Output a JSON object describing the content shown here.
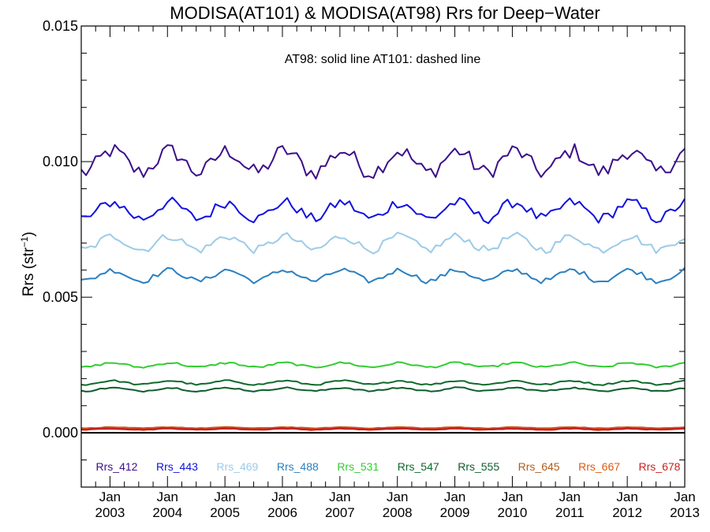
{
  "chart_data": {
    "type": "line",
    "title": "MODISA(AT101) & MODISA(AT98)  Rrs for Deep−Water",
    "annotation": "AT98: solid line   AT101: dashed line",
    "ylabel_main": "Rrs (str",
    "ylabel_sup": "−1",
    "ylabel_tail": ")",
    "xlabel": "",
    "x_start": "2002-07",
    "x_end": "2013-01",
    "ylim": [
      -0.002,
      0.015
    ],
    "y_ticks": [
      0.0,
      0.005,
      0.01,
      0.015
    ],
    "y_tick_labels": [
      "0.000",
      "0.005",
      "0.010",
      "0.015"
    ],
    "x_ticks": [
      {
        "month": "Jan",
        "year": "2003",
        "date": "2003-01"
      },
      {
        "month": "Jan",
        "year": "2004",
        "date": "2004-01"
      },
      {
        "month": "Jan",
        "year": "2005",
        "date": "2005-01"
      },
      {
        "month": "Jan",
        "year": "2006",
        "date": "2006-01"
      },
      {
        "month": "Jan",
        "year": "2007",
        "date": "2007-01"
      },
      {
        "month": "Jan",
        "year": "2008",
        "date": "2008-01"
      },
      {
        "month": "Jan",
        "year": "2009",
        "date": "2009-01"
      },
      {
        "month": "Jan",
        "year": "2010",
        "date": "2010-01"
      },
      {
        "month": "Jan",
        "year": "2011",
        "date": "2011-01"
      },
      {
        "month": "Jan",
        "year": "2012",
        "date": "2012-01"
      },
      {
        "month": "Jan",
        "year": "2013",
        "date": "2013-01"
      }
    ],
    "legend_placement": "bottom",
    "zero_line": true,
    "series": [
      {
        "name": "Rrs_412",
        "color": "#3b0f8a",
        "mean": 0.01,
        "amp": 0.0004,
        "noise": 0.0003
      },
      {
        "name": "Rrs_443",
        "color": "#1010e0",
        "mean": 0.0082,
        "amp": 0.0003,
        "noise": 0.0002
      },
      {
        "name": "Rrs_469",
        "color": "#9ccbe8",
        "mean": 0.007,
        "amp": 0.00025,
        "noise": 0.00015
      },
      {
        "name": "Rrs_488",
        "color": "#2a7fc0",
        "mean": 0.0058,
        "amp": 0.0002,
        "noise": 0.0001
      },
      {
        "name": "Rrs_531",
        "color": "#33cc33",
        "mean": 0.0025,
        "amp": 8e-05,
        "noise": 4e-05
      },
      {
        "name": "Rrs_547",
        "color": "#0c6a2a",
        "mean": 0.00185,
        "amp": 7e-05,
        "noise": 3e-05
      },
      {
        "name": "Rrs_555",
        "color": "#0d5e2e",
        "mean": 0.0016,
        "amp": 6e-05,
        "noise": 3e-05
      },
      {
        "name": "Rrs_645",
        "color": "#b35a1a",
        "mean": 0.00018,
        "amp": 2e-05,
        "noise": 1e-05
      },
      {
        "name": "Rrs_667",
        "color": "#e05a10",
        "mean": 0.00016,
        "amp": 2e-05,
        "noise": 1e-05
      },
      {
        "name": "Rrs_678",
        "color": "#c82020",
        "mean": 0.00014,
        "amp": 2e-05,
        "noise": 1e-05
      }
    ]
  }
}
